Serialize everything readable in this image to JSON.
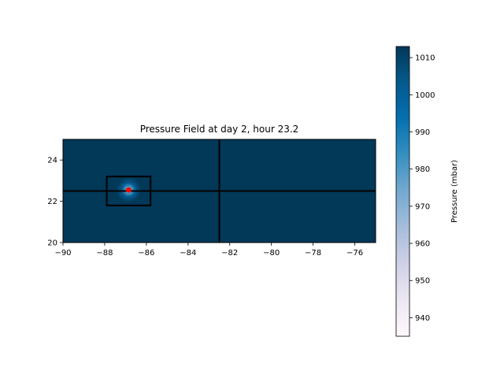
{
  "chart_data": {
    "type": "heatmap",
    "title": "Pressure Field at day   2, hour 23.2",
    "xlabel": "",
    "ylabel": "",
    "xlim": [
      -90,
      -75
    ],
    "ylim": [
      20,
      25
    ],
    "xticks": [
      -90,
      -88,
      -86,
      -84,
      -82,
      -80,
      -78,
      -76
    ],
    "xtick_labels": [
      "−90",
      "−88",
      "−86",
      "−84",
      "−82",
      "−80",
      "−78",
      "−76"
    ],
    "yticks": [
      20,
      22,
      24
    ],
    "ytick_labels": [
      "20",
      "22",
      "24"
    ],
    "colormap": "PuBu",
    "colors": {
      "ambient": "#023858",
      "center": "#e8e4f0",
      "marker": "#ff0000"
    },
    "field": {
      "center": [
        -86.85,
        22.55
      ],
      "min_pressure": 935,
      "ambient_pressure": 1012,
      "radius": 0.6
    },
    "storm_center": {
      "lon": -86.85,
      "lat": 22.55
    },
    "grid_lines": {
      "vertical_lon": -82.5,
      "horizontal_lat": 22.5
    },
    "inner_box": {
      "lon": [
        -87.9,
        -85.8
      ],
      "lat": [
        21.8,
        23.2
      ]
    },
    "colorbar": {
      "label": "Pressure (mbar)",
      "range": [
        935,
        1013
      ],
      "ticks": [
        940,
        950,
        960,
        970,
        980,
        990,
        1000,
        1010
      ],
      "tick_labels": [
        "940",
        "950",
        "960",
        "970",
        "980",
        "990",
        "1000",
        "1010"
      ]
    }
  }
}
